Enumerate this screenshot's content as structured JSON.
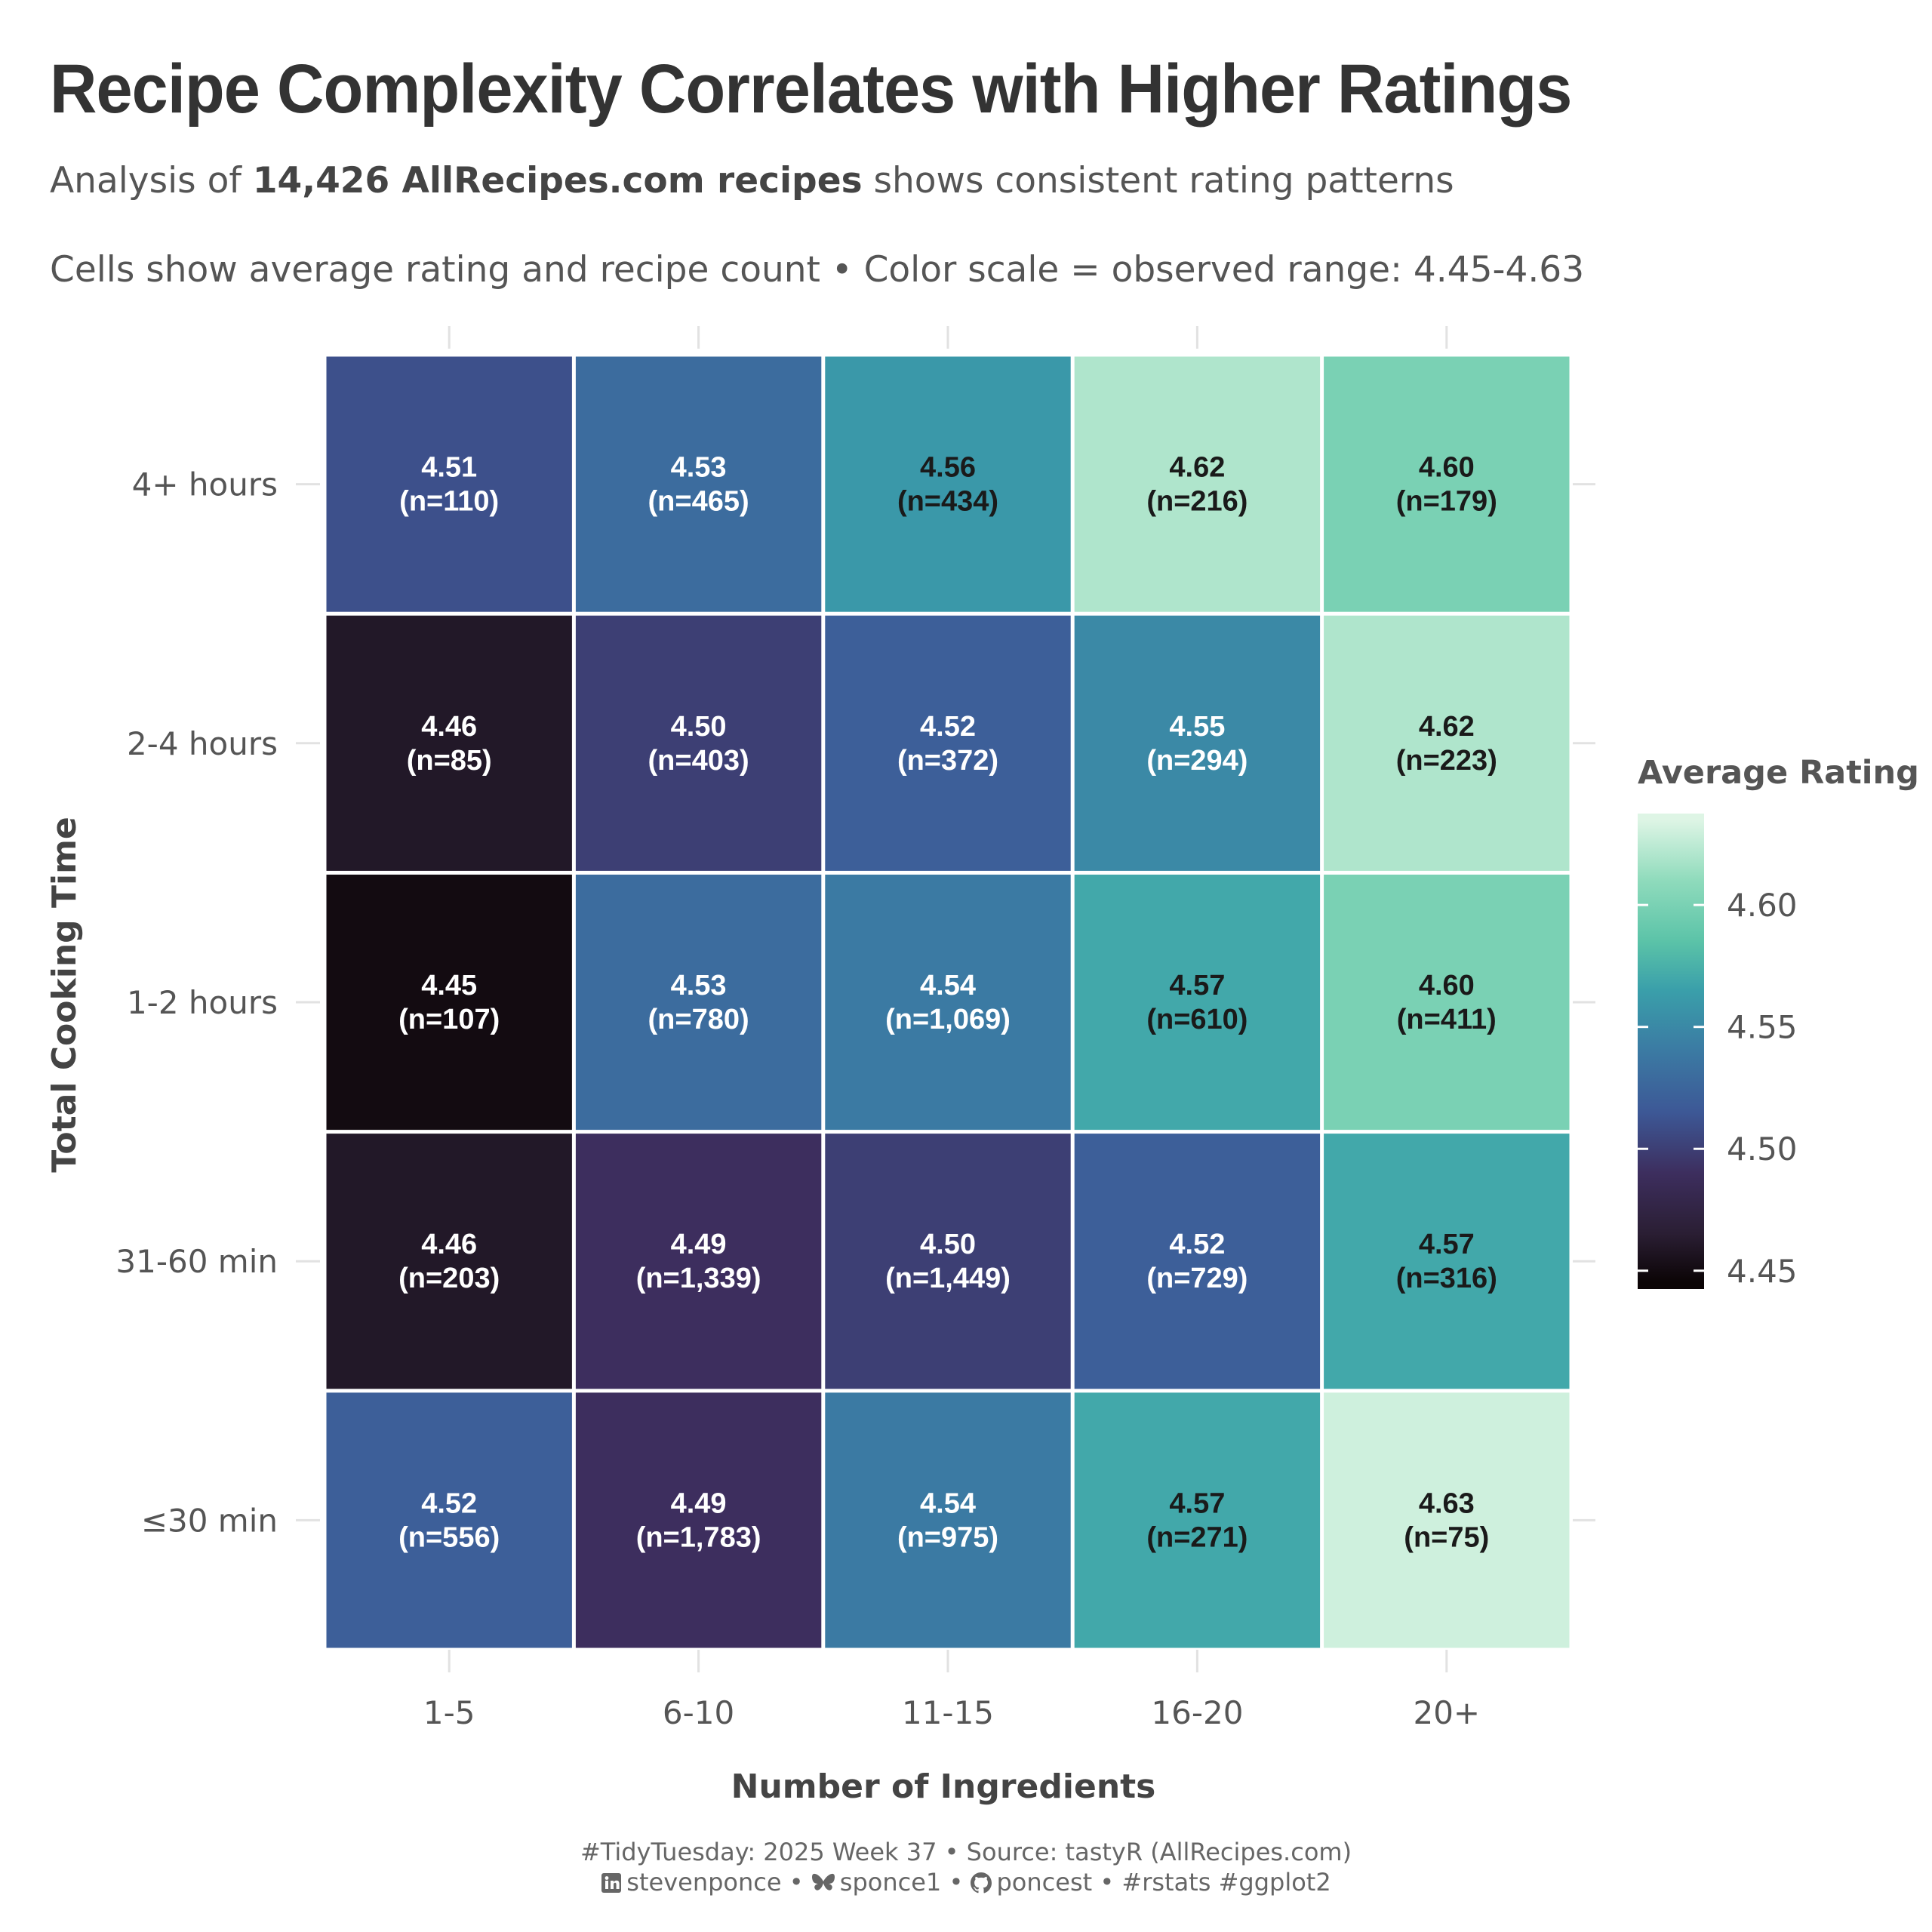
{
  "header": {
    "title": "Recipe Complexity Correlates with Higher Ratings",
    "subtitle_pre": "Analysis of ",
    "subtitle_bold": "14,426 AllRecipes.com recipes",
    "subtitle_post": " shows consistent rating patterns",
    "caption": "Cells show average rating and recipe count • Color scale = observed range: 4.45-4.63"
  },
  "footer": {
    "line1": "#TidyTuesday: 2025 Week 37 • Source: tastyR (AllRecipes.com)",
    "linkedin_handle": "stevenponce",
    "linkedin_icon": "linkedin-icon",
    "bluesky_handle": "sponce1",
    "bluesky_icon": "butterfly-icon",
    "github_handle": "poncest",
    "github_icon": "github-icon",
    "tags": "#rstats #ggplot2",
    "separator": "•"
  },
  "chart_data": {
    "type": "heatmap",
    "xlabel": "Number of Ingredients",
    "ylabel": "Total Cooking Time",
    "x_categories": [
      "1-5",
      "6-10",
      "11-15",
      "16-20",
      "20+"
    ],
    "y_categories": [
      "4+ hours",
      "2-4 hours",
      "1-2 hours",
      "31-60 min",
      "≤30 min"
    ],
    "values": [
      [
        4.51,
        4.53,
        4.56,
        4.62,
        4.6
      ],
      [
        4.46,
        4.5,
        4.52,
        4.55,
        4.62
      ],
      [
        4.45,
        4.53,
        4.54,
        4.57,
        4.6
      ],
      [
        4.46,
        4.49,
        4.5,
        4.52,
        4.57
      ],
      [
        4.52,
        4.49,
        4.54,
        4.57,
        4.63
      ]
    ],
    "labels": [
      [
        "4.51\n(n=110)",
        "4.53\n(n=465)",
        "4.56\n(n=434)",
        "4.62\n(n=216)",
        "4.60\n(n=179)"
      ],
      [
        "4.46\n(n=85)",
        "4.50\n(n=403)",
        "4.52\n(n=372)",
        "4.55\n(n=294)",
        "4.62\n(n=223)"
      ],
      [
        "4.45\n(n=107)",
        "4.53\n(n=780)",
        "4.54\n(n=1,069)",
        "4.57\n(n=610)",
        "4.60\n(n=411)"
      ],
      [
        "4.46\n(n=203)",
        "4.49\n(n=1,339)",
        "4.50\n(n=1,449)",
        "4.52\n(n=729)",
        "4.57\n(n=316)"
      ],
      [
        "4.52\n(n=556)",
        "4.49\n(n=1,783)",
        "4.54\n(n=975)",
        "4.57\n(n=271)",
        "4.63\n(n=75)"
      ]
    ],
    "legend": {
      "title": "Average Rating",
      "range": [
        4.4425,
        4.6375
      ],
      "ticks": [
        "4.45",
        "4.50",
        "4.55",
        "4.60"
      ],
      "tick_values": [
        4.45,
        4.5,
        4.55,
        4.6
      ],
      "placement": "right"
    },
    "colormap": {
      "stops": [
        {
          "v": 4.445,
          "c": "#0b0405"
        },
        {
          "v": 4.465,
          "c": "#2a1e33"
        },
        {
          "v": 4.49,
          "c": "#3d2e5e"
        },
        {
          "v": 4.515,
          "c": "#3d5896"
        },
        {
          "v": 4.54,
          "c": "#3b7aa3"
        },
        {
          "v": 4.565,
          "c": "#3a9faa"
        },
        {
          "v": 4.585,
          "c": "#5bc3a8"
        },
        {
          "v": 4.61,
          "c": "#8fdbbc"
        },
        {
          "v": 4.635,
          "c": "#def5e5"
        }
      ],
      "text_dark_threshold": 4.555,
      "text_dark": "#1a1a1a",
      "text_light": "#ffffff"
    }
  }
}
